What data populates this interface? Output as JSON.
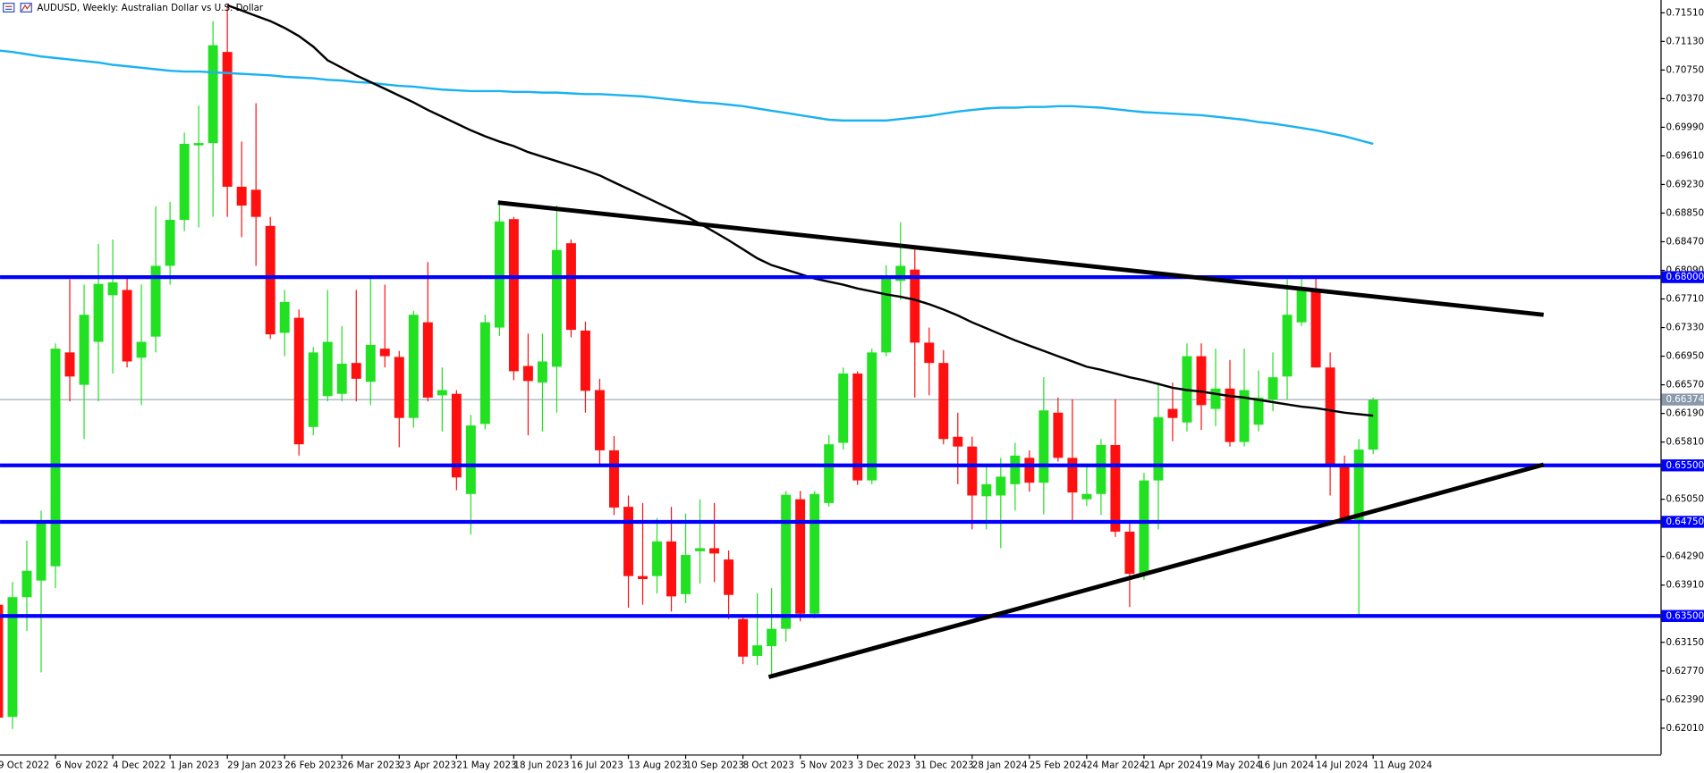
{
  "chart_data": {
    "type": "candlestick",
    "title": "AUDUSD, Weekly:  Australian Dollar vs U.S. Dollar",
    "categories": [
      "9 Oct 2022",
      null,
      null,
      null,
      "6 Nov 2022",
      null,
      null,
      null,
      "4 Dec 2022",
      null,
      null,
      null,
      "1 Jan 2023",
      null,
      null,
      null,
      "29 Jan 2023",
      null,
      null,
      null,
      "26 Feb 2023",
      null,
      null,
      null,
      "26 Mar 2023",
      null,
      null,
      null,
      "23 Apr 2023",
      null,
      null,
      null,
      "21 May 2023",
      null,
      null,
      null,
      "18 Jun 2023",
      null,
      null,
      null,
      "16 Jul 2023",
      null,
      null,
      null,
      "13 Aug 2023",
      null,
      null,
      null,
      "10 Sep 2023",
      null,
      null,
      null,
      "8 Oct 2023",
      null,
      null,
      null,
      "5 Nov 2023",
      null,
      null,
      null,
      "3 Dec 2023",
      null,
      null,
      null,
      "31 Dec 2023",
      null,
      null,
      null,
      "28 Jan 2024",
      null,
      null,
      null,
      "25 Feb 2024",
      null,
      null,
      null,
      "24 Mar 2024",
      null,
      null,
      null,
      "21 Apr 2024",
      null,
      null,
      null,
      "19 May 2024",
      null,
      null,
      null,
      "16 Jun 2024",
      null,
      null,
      null,
      "14 Jul 2024",
      null,
      null,
      null,
      "11 Aug 2024"
    ],
    "open": [
      0.6365,
      0.6216,
      0.6375,
      0.6397,
      0.6416,
      0.67,
      0.6657,
      0.6714,
      0.6776,
      0.6783,
      0.6693,
      0.6721,
      0.6815,
      0.6876,
      0.6975,
      0.6978,
      0.7099,
      0.692,
      0.6916,
      0.6868,
      0.6726,
      0.6746,
      0.6601,
      0.6642,
      0.6645,
      0.6686,
      0.6661,
      0.6705,
      0.6694,
      0.6613,
      0.674,
      0.6643,
      0.6645,
      0.6512,
      0.6605,
      0.6733,
      0.6877,
      0.6682,
      0.666,
      0.6681,
      0.6845,
      0.6729,
      0.665,
      0.657,
      0.6495,
      0.6403,
      0.6403,
      0.6449,
      0.6379,
      0.6436,
      0.644,
      0.6425,
      0.6346,
      0.6297,
      0.631,
      0.6333,
      0.6505,
      0.6353,
      0.65,
      0.658,
      0.6672,
      0.653,
      0.67,
      0.6795,
      0.681,
      0.6713,
      0.6686,
      0.6588,
      0.6575,
      0.6509,
      0.651,
      0.6525,
      0.656,
      0.6527,
      0.662,
      0.656,
      0.6505,
      0.6512,
      0.6577,
      0.6462,
      0.6406,
      0.653,
      0.6625,
      0.6607,
      0.6695,
      0.6625,
      0.6652,
      0.6581,
      0.6604,
      0.6637,
      0.6668,
      0.674,
      0.6783,
      0.668,
      0.6548,
      0.6477,
      0.6571
    ],
    "high": [
      0.639,
      0.6395,
      0.645,
      0.649,
      0.6712,
      0.6797,
      0.679,
      0.6844,
      0.685,
      0.68,
      0.679,
      0.6894,
      0.69,
      0.6992,
      0.7028,
      0.714,
      0.7158,
      0.698,
      0.7031,
      0.688,
      0.6783,
      0.6757,
      0.6707,
      0.6783,
      0.6735,
      0.6783,
      0.68,
      0.679,
      0.6702,
      0.6755,
      0.682,
      0.668,
      0.665,
      0.6617,
      0.675,
      0.6899,
      0.688,
      0.6725,
      0.6725,
      0.6895,
      0.685,
      0.6741,
      0.6665,
      0.6589,
      0.651,
      0.65,
      0.648,
      0.6495,
      0.6486,
      0.6505,
      0.65,
      0.6437,
      0.6348,
      0.638,
      0.6387,
      0.6516,
      0.6516,
      0.6516,
      0.659,
      0.668,
      0.6675,
      0.6705,
      0.6816,
      0.6873,
      0.684,
      0.6733,
      0.6703,
      0.662,
      0.6588,
      0.655,
      0.656,
      0.658,
      0.657,
      0.6667,
      0.664,
      0.6638,
      0.6552,
      0.6585,
      0.6638,
      0.6475,
      0.654,
      0.666,
      0.666,
      0.6712,
      0.6712,
      0.6705,
      0.669,
      0.6705,
      0.6676,
      0.67,
      0.6797,
      0.6798,
      0.6798,
      0.67,
      0.6563,
      0.6585,
      0.664
    ],
    "low": [
      0.62,
      0.62,
      0.633,
      0.6275,
      0.6387,
      0.6635,
      0.6585,
      0.6635,
      0.6672,
      0.668,
      0.663,
      0.67,
      0.679,
      0.6861,
      0.6866,
      0.688,
      0.688,
      0.6853,
      0.6815,
      0.6718,
      0.6695,
      0.6563,
      0.659,
      0.6635,
      0.6635,
      0.6635,
      0.663,
      0.668,
      0.6574,
      0.66,
      0.6635,
      0.6595,
      0.6517,
      0.6458,
      0.6598,
      0.6722,
      0.6663,
      0.659,
      0.6595,
      0.662,
      0.672,
      0.662,
      0.655,
      0.6484,
      0.6361,
      0.6365,
      0.638,
      0.6356,
      0.6367,
      0.6393,
      0.6395,
      0.6346,
      0.6286,
      0.6285,
      0.627,
      0.6316,
      0.6343,
      0.6347,
      0.6495,
      0.6571,
      0.6524,
      0.6525,
      0.6695,
      0.677,
      0.664,
      0.6643,
      0.6578,
      0.6525,
      0.6465,
      0.6465,
      0.644,
      0.649,
      0.6515,
      0.6485,
      0.6555,
      0.6475,
      0.6496,
      0.6484,
      0.6455,
      0.6362,
      0.6398,
      0.6465,
      0.6582,
      0.6595,
      0.6597,
      0.6602,
      0.6575,
      0.6575,
      0.6595,
      0.6622,
      0.6637,
      0.6735,
      0.668,
      0.651,
      0.6476,
      0.635,
      0.6565
    ],
    "close": [
      0.6215,
      0.6375,
      0.641,
      0.6474,
      0.6705,
      0.6668,
      0.675,
      0.6791,
      0.6793,
      0.6688,
      0.6714,
      0.6815,
      0.6876,
      0.6977,
      0.6978,
      0.7108,
      0.692,
      0.6895,
      0.688,
      0.6724,
      0.6767,
      0.6578,
      0.67,
      0.6714,
      0.6685,
      0.6665,
      0.671,
      0.6695,
      0.6613,
      0.675,
      0.664,
      0.665,
      0.6534,
      0.6603,
      0.674,
      0.6874,
      0.6675,
      0.6662,
      0.6688,
      0.6836,
      0.673,
      0.6649,
      0.657,
      0.6494,
      0.6403,
      0.6399,
      0.6449,
      0.6376,
      0.6431,
      0.644,
      0.6433,
      0.6378,
      0.6296,
      0.6311,
      0.6333,
      0.6511,
      0.6353,
      0.6512,
      0.6578,
      0.6672,
      0.653,
      0.67,
      0.6799,
      0.6815,
      0.6713,
      0.6686,
      0.6585,
      0.6575,
      0.651,
      0.6525,
      0.6535,
      0.6563,
      0.6527,
      0.6623,
      0.656,
      0.6514,
      0.6512,
      0.6577,
      0.6462,
      0.6406,
      0.653,
      0.6614,
      0.6613,
      0.6695,
      0.663,
      0.6652,
      0.6581,
      0.665,
      0.664,
      0.6667,
      0.675,
      0.6786,
      0.668,
      0.6548,
      0.6479,
      0.6571,
      0.6637
    ],
    "up_color": "#22e022",
    "down_color": "#ff1010",
    "moving_averages": [
      {
        "color": "#1ab2f0",
        "values": [
          0.7101,
          0.7099,
          0.7096,
          0.7093,
          0.7091,
          0.7089,
          0.7087,
          0.7085,
          0.7082,
          0.708,
          0.7078,
          0.7076,
          0.7074,
          0.7073,
          0.7073,
          0.7072,
          0.7071,
          0.707,
          0.7069,
          0.7068,
          0.7066,
          0.7065,
          0.7064,
          0.7062,
          0.7061,
          0.7059,
          0.7058,
          0.7056,
          0.7054,
          0.7053,
          0.7051,
          0.7049,
          0.7048,
          0.7047,
          0.7047,
          0.7047,
          0.7046,
          0.7046,
          0.7045,
          0.7045,
          0.7044,
          0.7043,
          0.7043,
          0.7042,
          0.7041,
          0.704,
          0.7038,
          0.7036,
          0.7034,
          0.7032,
          0.7031,
          0.7029,
          0.7027,
          0.7024,
          0.7021,
          0.7018,
          0.7015,
          0.7012,
          0.7009,
          0.7008,
          0.7008,
          0.7008,
          0.7008,
          0.701,
          0.7012,
          0.7014,
          0.7017,
          0.702,
          0.7022,
          0.7024,
          0.7025,
          0.7025,
          0.7026,
          0.7026,
          0.7027,
          0.7027,
          0.7026,
          0.7025,
          0.7023,
          0.7021,
          0.7019,
          0.7018,
          0.7017,
          0.7016,
          0.7015,
          0.7013,
          0.7011,
          0.7009,
          0.7006,
          0.7004,
          0.7001,
          0.6998,
          0.6995,
          0.6991,
          0.6987,
          0.6982,
          0.6977
        ]
      },
      {
        "color": "#000000",
        "values": [
          null,
          null,
          null,
          null,
          null,
          null,
          null,
          null,
          null,
          null,
          null,
          null,
          null,
          null,
          null,
          null,
          0.7161,
          0.7154,
          0.7147,
          0.714,
          0.7131,
          0.712,
          0.7106,
          0.7088,
          0.7078,
          0.7068,
          0.7059,
          0.705,
          0.7041,
          0.7032,
          0.7022,
          0.7013,
          0.7004,
          0.6995,
          0.6987,
          0.698,
          0.6974,
          0.6966,
          0.696,
          0.6954,
          0.6948,
          0.6942,
          0.6935,
          0.6926,
          0.6917,
          0.6908,
          0.6899,
          0.689,
          0.6881,
          0.6871,
          0.686,
          0.6849,
          0.6837,
          0.6825,
          0.6816,
          0.681,
          0.6804,
          0.6798,
          0.6794,
          0.679,
          0.6785,
          0.6781,
          0.6777,
          0.6774,
          0.677,
          0.6764,
          0.6757,
          0.6749,
          0.674,
          0.6732,
          0.6724,
          0.6716,
          0.6709,
          0.6702,
          0.6695,
          0.6688,
          0.6681,
          0.6677,
          0.6672,
          0.6667,
          0.6663,
          0.6658,
          0.6653,
          0.665,
          0.6648,
          0.6645,
          0.6642,
          0.664,
          0.6637,
          0.6634,
          0.6631,
          0.6628,
          0.6626,
          0.6623,
          0.662,
          0.6618,
          0.6616
        ]
      }
    ],
    "hlines": [
      {
        "value": 0.68,
        "label": "0.68000",
        "color": "#0000ff"
      },
      {
        "value": 0.655,
        "label": "0.65500",
        "color": "#0000ff"
      },
      {
        "value": 0.6475,
        "label": "0.64750",
        "color": "#0000ff"
      },
      {
        "value": 0.635,
        "label": "0.63500",
        "color": "#0000ff"
      }
    ],
    "price_line": {
      "value": 0.66374,
      "label": "0.66374",
      "color": "#8a9aaa"
    },
    "trendlines": [
      {
        "x": [
          34.9,
          107.9
        ],
        "y": [
          0.6899,
          0.675
        ]
      },
      {
        "x": [
          53.8,
          107.9
        ],
        "y": [
          0.6269,
          0.6551
        ]
      }
    ],
    "ylim": [
      0.6166,
      0.7168
    ],
    "yticks": [
      {
        "value": 0.7151,
        "label": "0.71510"
      },
      {
        "value": 0.7113,
        "label": "0.71130"
      },
      {
        "value": 0.7075,
        "label": "0.70750"
      },
      {
        "value": 0.7037,
        "label": "0.70370"
      },
      {
        "value": 0.6999,
        "label": "0.69990"
      },
      {
        "value": 0.6961,
        "label": "0.69610"
      },
      {
        "value": 0.6923,
        "label": "0.69230"
      },
      {
        "value": 0.6885,
        "label": "0.68850"
      },
      {
        "value": 0.6847,
        "label": "0.68470"
      },
      {
        "value": 0.6809,
        "label": "0.68090"
      },
      {
        "value": 0.6771,
        "label": "0.67710"
      },
      {
        "value": 0.6733,
        "label": "0.67330"
      },
      {
        "value": 0.6695,
        "label": "0.66950"
      },
      {
        "value": 0.6657,
        "label": "0.66570"
      },
      {
        "value": 0.6619,
        "label": "0.66190"
      },
      {
        "value": 0.6581,
        "label": "0.65810"
      },
      {
        "value": 0.6505,
        "label": "0.65050"
      },
      {
        "value": 0.6429,
        "label": "0.64290"
      },
      {
        "value": 0.6391,
        "label": "0.63910"
      },
      {
        "value": 0.6315,
        "label": "0.63150"
      },
      {
        "value": 0.6277,
        "label": "0.62770"
      },
      {
        "value": 0.6239,
        "label": "0.62390"
      },
      {
        "value": 0.6201,
        "label": "0.62010"
      }
    ]
  }
}
